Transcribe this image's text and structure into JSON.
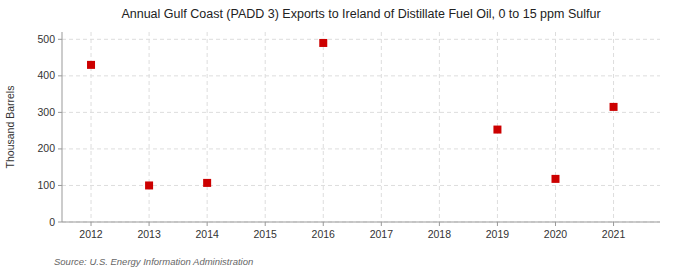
{
  "chart_data": {
    "type": "scatter",
    "title": "Annual Gulf Coast (PADD 3) Exports to Ireland of Distillate Fuel Oil, 0 to 15 ppm Sulfur",
    "ylabel": "Thousand Barrels",
    "annotations": [
      "Source: U.S. Energy Information Administration"
    ],
    "x": [
      2012,
      2013,
      2014,
      2016,
      2019,
      2020,
      2021
    ],
    "values": [
      430,
      100,
      107,
      490,
      253,
      118,
      315
    ],
    "color": "#cc0000",
    "marker": "square",
    "xlim": [
      2011.5,
      2021.8
    ],
    "ylim": [
      0,
      520
    ],
    "xticks": [
      2012,
      2013,
      2014,
      2015,
      2016,
      2017,
      2018,
      2019,
      2020,
      2021
    ],
    "yticks": [
      0,
      100,
      200,
      300,
      400,
      500
    ],
    "grid": true
  }
}
